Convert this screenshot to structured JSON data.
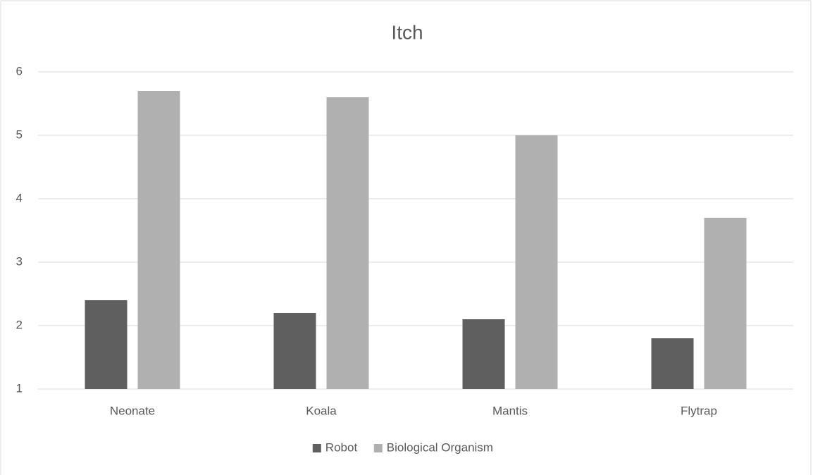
{
  "chart_data": {
    "type": "bar",
    "title": "Itch",
    "categories": [
      "Neonate",
      "Koala",
      "Mantis",
      "Flytrap"
    ],
    "series": [
      {
        "name": "Robot",
        "color": "#5f5f5f",
        "values": [
          2.4,
          2.2,
          2.1,
          1.8
        ]
      },
      {
        "name": "Biological Organism",
        "color": "#b0b0b0",
        "values": [
          5.7,
          5.6,
          5.0,
          3.7
        ]
      }
    ],
    "ylim": [
      1,
      6
    ],
    "yticks": [
      1,
      2,
      3,
      4,
      5,
      6
    ],
    "grid": true,
    "legend": "bottom"
  }
}
